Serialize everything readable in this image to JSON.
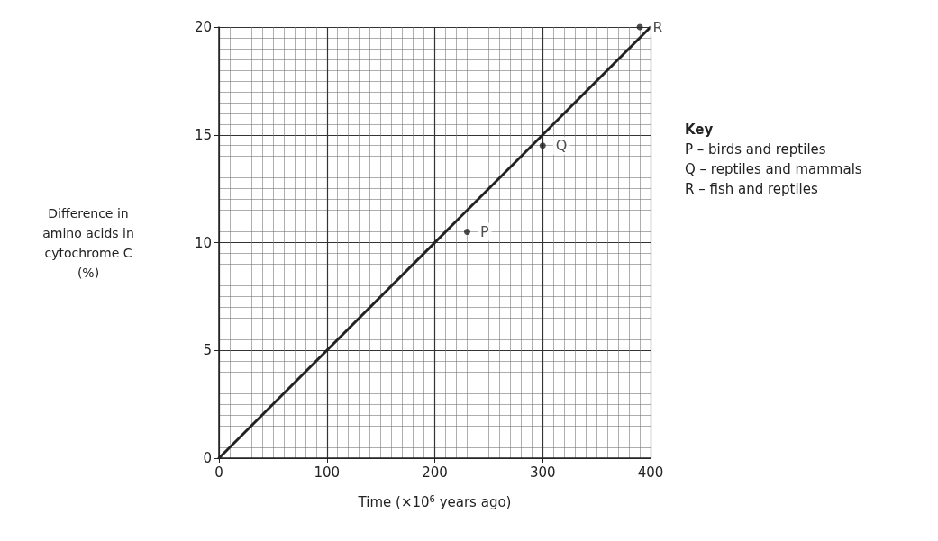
{
  "chart_data": {
    "type": "line",
    "xlabel": "Time (×10$^{6}$ years ago)",
    "ylabel": "Difference in\namino acids in\ncytochrome C\n(%)",
    "xlim": [
      0,
      400
    ],
    "xticks": [
      0,
      100,
      200,
      300,
      400
    ],
    "ylim": [
      0,
      20
    ],
    "yticks": [
      0,
      5,
      10,
      15,
      20
    ],
    "grid": true,
    "series": [
      {
        "color": "#222222",
        "x": [
          0,
          400
        ],
        "values": [
          0,
          20
        ],
        "marker": "none"
      },
      {
        "type": "scatter",
        "color": "#222222",
        "x": [
          230,
          300,
          390
        ],
        "values": [
          10.5,
          14.5,
          20
        ],
        "marker": "circle",
        "value_labels": [
          "P",
          "Q",
          "R"
        ]
      }
    ],
    "annotations": [
      "Key",
      "P – birds and reptiles",
      "Q – reptiles and mammals",
      "R – fish and reptiles"
    ]
  }
}
